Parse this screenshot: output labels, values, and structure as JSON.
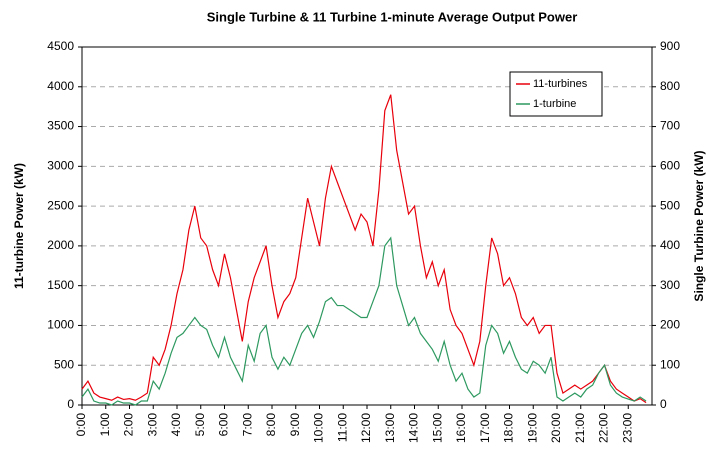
{
  "chart_data": {
    "type": "line",
    "title": "Single Turbine & 11 Turbine 1-minute Average Output Power",
    "y_label": "11-turbine Power (kW)",
    "y2_label": "Single Turbine Power (kW)",
    "x": [
      0,
      0.25,
      0.5,
      0.75,
      1,
      1.25,
      1.5,
      1.75,
      2,
      2.25,
      2.5,
      2.75,
      3,
      3.25,
      3.5,
      3.75,
      4,
      4.25,
      4.5,
      4.75,
      5,
      5.25,
      5.5,
      5.75,
      6,
      6.25,
      6.5,
      6.75,
      7,
      7.25,
      7.5,
      7.75,
      8,
      8.25,
      8.5,
      8.75,
      9,
      9.25,
      9.5,
      9.75,
      10,
      10.25,
      10.5,
      10.75,
      11,
      11.25,
      11.5,
      11.75,
      12,
      12.25,
      12.5,
      12.75,
      13,
      13.25,
      13.5,
      13.75,
      14,
      14.25,
      14.5,
      14.75,
      15,
      15.25,
      15.5,
      15.75,
      16,
      16.25,
      16.5,
      16.75,
      17,
      17.25,
      17.5,
      17.75,
      18,
      18.25,
      18.5,
      18.75,
      19,
      19.25,
      19.5,
      19.75,
      20,
      20.25,
      20.5,
      20.75,
      21,
      21.25,
      21.5,
      21.75,
      22,
      22.25,
      22.5,
      22.75,
      23,
      23.25,
      23.5,
      23.75
    ],
    "series": [
      {
        "name": "11-turbines",
        "color": "#e8000b",
        "axis": "y",
        "values": [
          200,
          300,
          150,
          100,
          80,
          60,
          100,
          70,
          80,
          60,
          100,
          150,
          600,
          500,
          700,
          1000,
          1400,
          1700,
          2200,
          2500,
          2100,
          2000,
          1700,
          1500,
          1900,
          1600,
          1200,
          800,
          1300,
          1600,
          1800,
          2000,
          1500,
          1100,
          1300,
          1400,
          1600,
          2100,
          2600,
          2300,
          2000,
          2600,
          3000,
          2800,
          2600,
          2400,
          2200,
          2400,
          2300,
          2000,
          2700,
          3700,
          3900,
          3200,
          2800,
          2400,
          2500,
          2000,
          1600,
          1800,
          1500,
          1700,
          1200,
          1000,
          900,
          700,
          500,
          800,
          1500,
          2100,
          1900,
          1500,
          1600,
          1400,
          1100,
          1000,
          1100,
          900,
          1000,
          1000,
          400,
          150,
          200,
          250,
          200,
          250,
          300,
          400,
          500,
          300,
          200,
          150,
          100,
          50,
          80,
          30
        ]
      },
      {
        "name": "1-turbine",
        "color": "#2e9960",
        "axis": "y2",
        "values": [
          20,
          40,
          10,
          5,
          5,
          0,
          10,
          5,
          5,
          0,
          10,
          10,
          60,
          40,
          80,
          130,
          170,
          180,
          200,
          220,
          200,
          190,
          150,
          120,
          170,
          120,
          90,
          60,
          150,
          110,
          180,
          200,
          120,
          90,
          120,
          100,
          140,
          180,
          200,
          170,
          210,
          260,
          270,
          250,
          250,
          240,
          230,
          220,
          220,
          260,
          300,
          400,
          420,
          300,
          250,
          200,
          220,
          180,
          160,
          140,
          110,
          160,
          100,
          60,
          80,
          40,
          20,
          30,
          150,
          200,
          180,
          130,
          160,
          120,
          90,
          80,
          110,
          100,
          80,
          120,
          20,
          10,
          20,
          30,
          20,
          40,
          50,
          80,
          100,
          50,
          30,
          20,
          15,
          10,
          20,
          10
        ]
      }
    ],
    "xlim": [
      0,
      24
    ],
    "xticks": [
      {
        "value": 0,
        "label": "0:00"
      },
      {
        "value": 1,
        "label": "1:00"
      },
      {
        "value": 2,
        "label": "2:00"
      },
      {
        "value": 3,
        "label": "3:00"
      },
      {
        "value": 4,
        "label": "4:00"
      },
      {
        "value": 5,
        "label": "5:00"
      },
      {
        "value": 6,
        "label": "6:00"
      },
      {
        "value": 7,
        "label": "7:00"
      },
      {
        "value": 8,
        "label": "8:00"
      },
      {
        "value": 9,
        "label": "9:00"
      },
      {
        "value": 10,
        "label": "10:00"
      },
      {
        "value": 11,
        "label": "11:00"
      },
      {
        "value": 12,
        "label": "12:00"
      },
      {
        "value": 13,
        "label": "13:00"
      },
      {
        "value": 14,
        "label": "14:00"
      },
      {
        "value": 15,
        "label": "15:00"
      },
      {
        "value": 16,
        "label": "16:00"
      },
      {
        "value": 17,
        "label": "17:00"
      },
      {
        "value": 18,
        "label": "18:00"
      },
      {
        "value": 19,
        "label": "19:00"
      },
      {
        "value": 20,
        "label": "20:00"
      },
      {
        "value": 21,
        "label": "21:00"
      },
      {
        "value": 22,
        "label": "22:00"
      },
      {
        "value": 23,
        "label": "23:00"
      }
    ],
    "ylim": [
      0,
      4500
    ],
    "yticks": [
      0,
      500,
      1000,
      1500,
      2000,
      2500,
      3000,
      3500,
      4000,
      4500
    ],
    "y2lim": [
      0,
      900
    ],
    "y2ticks": [
      0,
      100,
      200,
      300,
      400,
      500,
      600,
      700,
      800,
      900
    ],
    "grid": true,
    "legend": "upper right"
  }
}
